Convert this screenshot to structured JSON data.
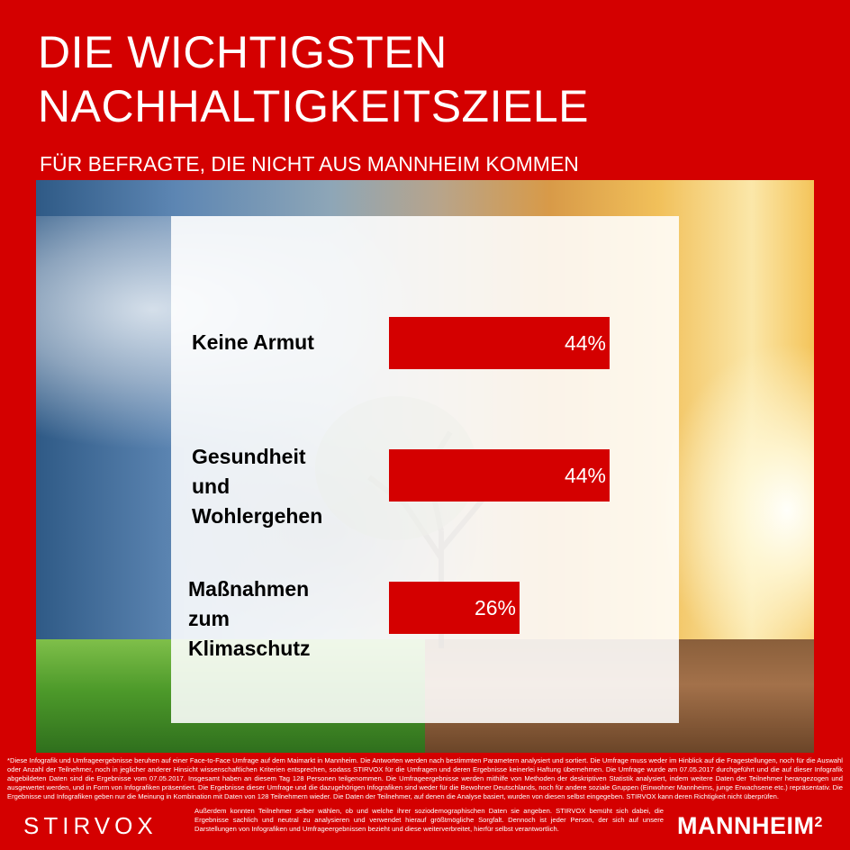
{
  "header": {
    "title_line1": "DIE WICHTIGSTEN",
    "title_line2": "NACHHALTIGKEITSZIELE",
    "subtitle": "FÜR BEFRAGTE, DIE NICHT AUS MANNHEIM KOMMEN"
  },
  "colors": {
    "brand_red": "#d40000",
    "panel": "#ffffff"
  },
  "chart_data": {
    "type": "bar",
    "orientation": "horizontal",
    "categories": [
      "Keine Armut",
      "Gesundheit\nund\nWohlergehen",
      "Maßnahmen\nzum\nKlimaschutz"
    ],
    "values": [
      44,
      44,
      26
    ],
    "value_labels": [
      "44%",
      "44%",
      "26%"
    ],
    "title": "",
    "xlabel": "",
    "ylabel": "",
    "xlim": [
      0,
      100
    ],
    "grid": false
  },
  "footer": {
    "disclaimer_main": "*Diese Infografik und Umfrageergebnisse beruhen auf einer Face-to-Face Umfrage auf dem Maimarkt in Mannheim. Die Antworten werden nach bestimmten Parametern analysiert und sortiert. Die Umfrage muss weder im Hinblick auf die Fragestellungen, noch für die Auswahl oder Anzahl der Teilnehmer, noch in jeglicher anderer Hinsicht wissenschaftlichen Kriterien entsprechen, sodass STIRVOX für die Umfragen und deren Ergebnisse keinerlei Haftung übernehmen. Die Umfrage wurde am 07.05.2017 durchgeführt und die auf dieser Infografik abgebildeten Daten sind die Ergebnisse vom 07.05.2017. Insgesamt haben an diesem Tag 128 Personen teilgenommen. Die Umfrageergebnisse werden mithilfe von Methoden der deskriptiven Statistik analysiert, indem weitere Daten der Teilnehmer herangezogen und ausgewertet werden, und in Form von Infografiken präsentiert. Die Ergebnisse dieser Umfrage und die dazugehörigen Infografiken sind weder für die Bewohner Deutschlands, noch für andere soziale Gruppen (Einwohner Mannheims, junge Erwachsene etc.) repräsentativ. Die Ergebnisse und Infografiken geben nur die Meinung in Kombination mit Daten von 128 Teilnehmern wieder. Die Daten der Teilnehmer, auf denen die Analyse basiert, wurden von diesen selbst eingegeben. STIRVOX kann deren Richtigkeit nicht überprüfen.",
    "disclaimer_end": "Außerdem konnten Teilnehmer selber wählen, ob und welche ihrer soziodemographischen Daten sie angeben. STIRVOX bemüht sich dabei, die Ergebnisse sachlich und neutral zu analysieren und verwendet hierauf größtmögliche Sorgfalt. Dennoch ist jeder Person, der sich auf unsere Darstellungen von Infografiken und Umfrageergebnissen bezieht und diese weiterverbreitet, hierfür selbst verantwortlich.",
    "logo_left": "STIRVOX",
    "logo_right": "MANNHEIM",
    "logo_right_sup": "2"
  }
}
